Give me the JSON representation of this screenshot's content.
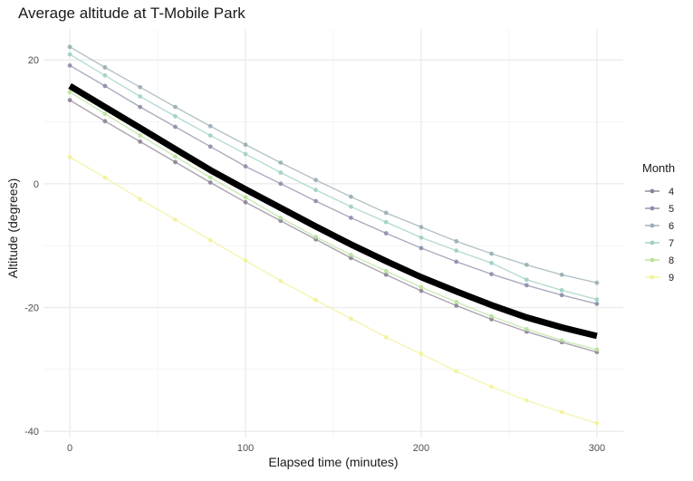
{
  "chart_data": {
    "type": "line",
    "title": "Average altitude at T-Mobile Park",
    "xlabel": "Elapsed time (minutes)",
    "ylabel": "Altitude (degrees)",
    "xlim": [
      -15,
      315
    ],
    "ylim": [
      -41,
      25
    ],
    "x_ticks": [
      0,
      100,
      200,
      300
    ],
    "y_ticks": [
      -40,
      -20,
      0,
      20
    ],
    "grid": true,
    "legend_title": "Month",
    "legend_position": "right",
    "x": [
      0,
      20,
      40,
      60,
      80,
      100,
      120,
      140,
      160,
      180,
      200,
      220,
      240,
      260,
      280,
      300
    ],
    "series": [
      {
        "name": "4",
        "color": "#8f8496",
        "values": [
          13.5,
          10.1,
          6.8,
          3.5,
          0.2,
          -3.0,
          -6.0,
          -9.0,
          -12.0,
          -14.7,
          -17.3,
          -19.7,
          -21.9,
          -23.9,
          -25.6,
          -27.2
        ]
      },
      {
        "name": "5",
        "color": "#8c8fa9",
        "values": [
          19.1,
          15.8,
          12.4,
          9.2,
          6.0,
          2.8,
          0.0,
          -2.8,
          -5.5,
          -8.0,
          -10.4,
          -12.6,
          -14.6,
          -16.4,
          -18.0,
          -19.4
        ]
      },
      {
        "name": "6",
        "color": "#99aeb4",
        "values": [
          22.1,
          18.8,
          15.6,
          12.4,
          9.3,
          6.3,
          3.4,
          0.6,
          -2.1,
          -4.7,
          -7.0,
          -9.3,
          -11.3,
          -13.1,
          -14.7,
          -16.0
        ]
      },
      {
        "name": "7",
        "color": "#9fd0c4",
        "values": [
          20.9,
          17.5,
          14.1,
          10.9,
          7.8,
          4.8,
          1.8,
          -1.0,
          -3.7,
          -6.2,
          -8.7,
          -10.8,
          -12.8,
          -15.5,
          -17.2,
          -18.7
        ]
      },
      {
        "name": "8",
        "color": "#b9e29c",
        "values": [
          14.8,
          11.3,
          7.8,
          4.4,
          1.0,
          -2.2,
          -5.5,
          -8.6,
          -11.5,
          -14.1,
          -16.7,
          -19.1,
          -21.4,
          -23.5,
          -25.3,
          -26.8
        ]
      },
      {
        "name": "9",
        "color": "#f2f29a",
        "values": [
          4.3,
          1.0,
          -2.5,
          -5.8,
          -9.1,
          -12.4,
          -15.7,
          -18.8,
          -21.8,
          -24.8,
          -27.5,
          -30.3,
          -32.8,
          -35.0,
          -36.9,
          -38.7
        ]
      }
    ],
    "average": {
      "color": "#000000",
      "values": [
        15.8,
        12.4,
        9.0,
        5.6,
        2.2,
        -0.9,
        -3.9,
        -6.9,
        -9.8,
        -12.5,
        -15.1,
        -17.4,
        -19.6,
        -21.6,
        -23.2,
        -24.6
      ]
    }
  }
}
